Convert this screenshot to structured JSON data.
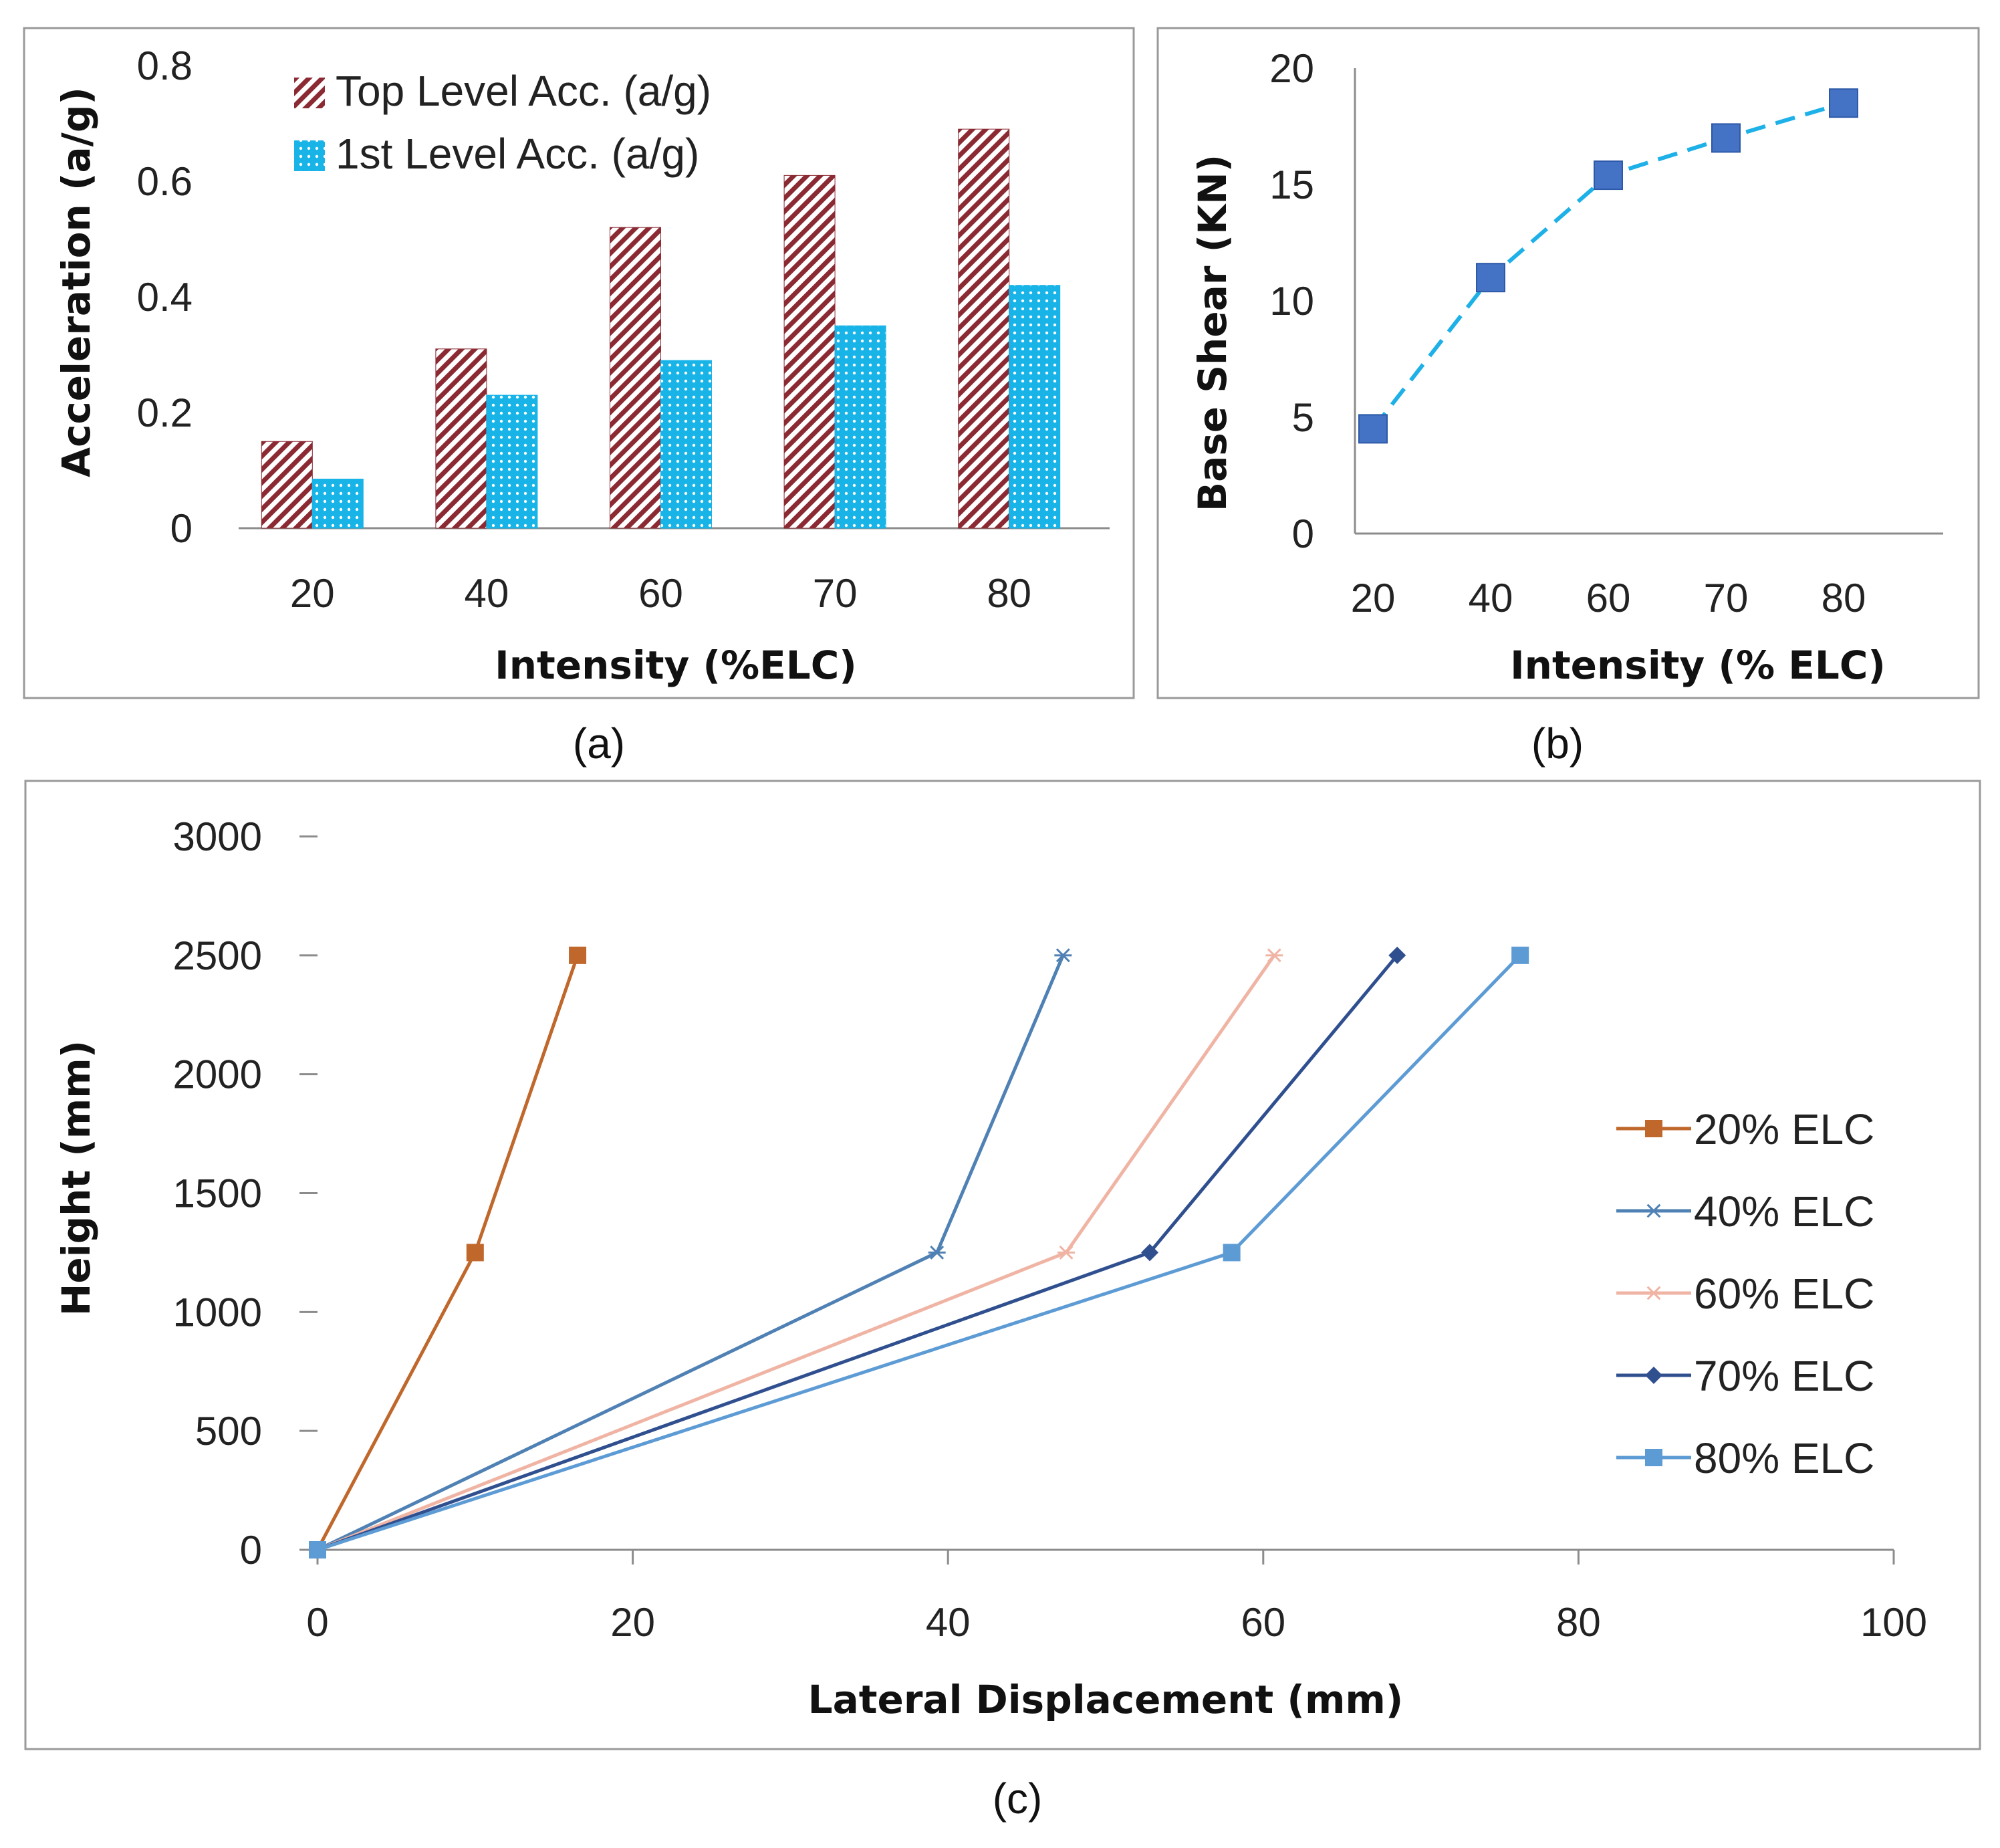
{
  "chart_data": [
    {
      "type": "bar",
      "caption": "(a)",
      "categories": [
        "20",
        "40",
        "60",
        "70",
        "80"
      ],
      "series": [
        {
          "name": "Top Level Acc. (a/g)",
          "values": [
            0.15,
            0.31,
            0.52,
            0.61,
            0.69
          ],
          "color": "#8b2a33",
          "pattern": "diagonal-hatch"
        },
        {
          "name": "1st Level Acc. (a/g)",
          "values": [
            0.085,
            0.23,
            0.29,
            0.35,
            0.42
          ],
          "color": "#18b4e8",
          "pattern": "dots"
        }
      ],
      "xlabel": "Intensity (%ELC)",
      "ylabel": "Acceleration (a/g)",
      "ylim": [
        0,
        0.8
      ],
      "yticks": [
        "0",
        "0.2",
        "0.4",
        "0.6",
        "0.8"
      ],
      "legend": "top-left"
    },
    {
      "type": "line",
      "caption": "(b)",
      "categories": [
        "20",
        "40",
        "60",
        "70",
        "80"
      ],
      "series": [
        {
          "name": "Base Shear",
          "values": [
            4.5,
            11.0,
            15.4,
            17.0,
            18.5
          ],
          "color": "#1eb1e8",
          "marker_color": "#4472c4",
          "dash": true
        }
      ],
      "xlabel": "Intensity (% ELC)",
      "ylabel": "Base Shear (KN)",
      "ylim": [
        0,
        20
      ],
      "yticks": [
        "0",
        "5",
        "10",
        "15",
        "20"
      ]
    },
    {
      "type": "line",
      "caption": "(c)",
      "xlabel": "Lateral Displacement  (mm)",
      "ylabel": "Height (mm)",
      "xlim": [
        0,
        100
      ],
      "ylim": [
        0,
        3000
      ],
      "xticks": [
        "0",
        "20",
        "40",
        "60",
        "80",
        "100"
      ],
      "yticks": [
        "0",
        "500",
        "1000",
        "1500",
        "2000",
        "2500",
        "3000"
      ],
      "legend": "right",
      "series": [
        {
          "name": "20% ELC",
          "x": [
            0,
            10,
            16.5
          ],
          "y": [
            0,
            1250,
            2500
          ],
          "color": "#c0672b",
          "marker": "square"
        },
        {
          "name": "40% ELC",
          "x": [
            0,
            39.3,
            47.3
          ],
          "y": [
            0,
            1250,
            2500
          ],
          "color": "#4f81b4",
          "marker": "star"
        },
        {
          "name": "60% ELC",
          "x": [
            0,
            47.5,
            60.7
          ],
          "y": [
            0,
            1250,
            2500
          ],
          "color": "#f0b4a4",
          "marker": "star"
        },
        {
          "name": "70% ELC",
          "x": [
            0,
            52.8,
            68.5
          ],
          "y": [
            0,
            1250,
            2500
          ],
          "color": "#2f4f8f",
          "marker": "diamond"
        },
        {
          "name": "80% ELC",
          "x": [
            0,
            58,
            76.3
          ],
          "y": [
            0,
            1250,
            2500
          ],
          "color": "#5d9bd5",
          "marker": "square"
        }
      ]
    }
  ]
}
